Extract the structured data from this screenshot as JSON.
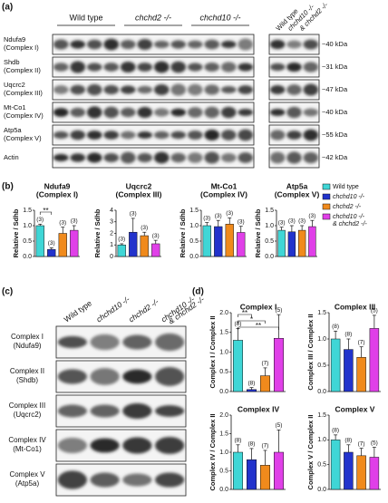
{
  "panels": {
    "a": "(a)",
    "b": "(b)",
    "c": "(c)",
    "d": "(d)"
  },
  "blot_a": {
    "groups": [
      "Wild type",
      "chchd2 -/-",
      "chchd10 -/-"
    ],
    "side_lanes": [
      "Wild type",
      "chchd10 -/-",
      "& chchd2 -/-"
    ],
    "rows": [
      {
        "name": "Ndufa9",
        "complex": "(Complex I)",
        "size": "~40 kDa"
      },
      {
        "name": "Shdb",
        "complex": "(Complex II)",
        "size": "~31 kDa"
      },
      {
        "name": "Uqcrc2",
        "complex": "(Complex III)",
        "size": "~47 kDa"
      },
      {
        "name": "Mt-Co1",
        "complex": "(Complex IV)",
        "size": "~40 kDa"
      },
      {
        "name": "Atp5a",
        "complex": "(Complex V)",
        "size": "~55 kDa"
      },
      {
        "name": "Actin",
        "complex": null,
        "size": "~42 kDa"
      }
    ]
  },
  "legend": [
    {
      "lines": [
        "Wild type"
      ],
      "color": "#3fd6d6"
    },
    {
      "lines": [
        "chchd10 -/-"
      ],
      "color": "#2233cc"
    },
    {
      "lines": [
        "chchd2 -/-"
      ],
      "color": "#f08a1c"
    },
    {
      "lines": [
        "chchd10 -/-",
        "& chchd2 -/-"
      ],
      "color": "#e040e8"
    }
  ],
  "blot_c": {
    "lanes": [
      [
        "Wild type"
      ],
      [
        "chchd10 -/-"
      ],
      [
        "chchd2 -/-"
      ],
      [
        "chchd10 -/-",
        "& chchd2 -/-"
      ]
    ],
    "rows": [
      [
        "Complex I",
        "(Ndufa9)"
      ],
      [
        "Complex II",
        "(Shdb)"
      ],
      [
        "Complex III",
        "(Uqcrc2)"
      ],
      [
        "Complex IV",
        "(Mt-Co1)"
      ],
      [
        "Complex V",
        "(Atp5a)"
      ]
    ]
  },
  "chart_data": [
    {
      "type": "bar",
      "title": "Ndufa9",
      "subtitle": "(Complex I)",
      "ylabel": "Relative / Sdhb",
      "ylim": [
        0,
        1.5
      ],
      "yticks": [
        {
          "value": 0,
          "label": "0.0"
        },
        0.5,
        {
          "value": 1,
          "label": "1.0"
        },
        1.5
      ],
      "values": [
        1.0,
        0.23,
        0.75,
        0.85
      ],
      "errors": [
        0.05,
        0.05,
        0.2,
        0.15
      ],
      "n_labels": [
        "(3)",
        "(3)",
        "(3)",
        "(3)"
      ],
      "annotations": [
        "**"
      ]
    },
    {
      "type": "bar",
      "title": "Uqcrc2",
      "subtitle": "(Complex III)",
      "ylabel": "Relative / Sdhb",
      "ylim": [
        0,
        4
      ],
      "yticks": [
        0,
        1,
        2,
        3,
        4
      ],
      "values": [
        1.0,
        2.1,
        1.8,
        1.1
      ],
      "errors": [
        0.1,
        1.2,
        0.3,
        0.3
      ],
      "n_labels": [
        "(3)",
        "(3)",
        "(3)",
        "(3)"
      ],
      "annotations": []
    },
    {
      "type": "bar",
      "title": "Mt-Co1",
      "subtitle": "(Complex IV)",
      "ylabel": "Relative / Sdhb",
      "ylim": [
        0,
        1.5
      ],
      "yticks": [
        {
          "value": 0,
          "label": "0.0"
        },
        0.5,
        {
          "value": 1,
          "label": "1.0"
        },
        1.5
      ],
      "values": [
        1.0,
        0.97,
        1.05,
        0.78
      ],
      "errors": [
        0.1,
        0.2,
        0.2,
        0.2
      ],
      "n_labels": [
        "(3)",
        "(3)",
        "(3)",
        "(3)"
      ],
      "annotations": []
    },
    {
      "type": "bar",
      "title": "Atp5a",
      "subtitle": "(Complex V)",
      "ylabel": "Relative / Sdhb",
      "ylim": [
        0,
        1.5
      ],
      "yticks": [
        {
          "value": 0,
          "label": "0.0"
        },
        0.5,
        {
          "value": 1,
          "label": "1.0"
        },
        1.5
      ],
      "values": [
        0.85,
        0.8,
        0.85,
        0.97
      ],
      "errors": [
        0.1,
        0.2,
        0.15,
        0.2
      ],
      "n_labels": [
        "(3)",
        "(3)",
        "(3)",
        "(3)"
      ],
      "annotations": []
    },
    {
      "type": "bar",
      "title": "Complex I",
      "ylabel": "Complex I / Complex II",
      "ylim": [
        0,
        2
      ],
      "yticks": [
        {
          "value": 0,
          "label": "0.0"
        },
        0.5,
        {
          "value": 1,
          "label": "1.0"
        },
        1.5,
        {
          "value": 2,
          "label": "2.0"
        }
      ],
      "values": [
        1.3,
        0.05,
        0.4,
        1.35
      ],
      "errors": [
        0.3,
        0.05,
        0.2,
        0.6
      ],
      "n_labels": [
        "(8)",
        "(8)",
        "(7)",
        "(5)"
      ],
      "annotations": [
        "**",
        "*",
        "**"
      ]
    },
    {
      "type": "bar",
      "title": "Complex III",
      "ylabel": "Complex III / Complex II",
      "ylim": [
        0,
        1.5
      ],
      "yticks": [
        {
          "value": 0,
          "label": "0.0"
        },
        0.5,
        {
          "value": 1,
          "label": "1.0"
        },
        1.5
      ],
      "values": [
        1.0,
        0.8,
        0.65,
        1.2
      ],
      "errors": [
        0.15,
        0.2,
        0.2,
        0.25
      ],
      "n_labels": [
        "(8)",
        "(8)",
        "(7)",
        "(5)"
      ],
      "annotations": []
    },
    {
      "type": "bar",
      "title": "Complex IV",
      "ylabel": "Complex IV / Complex II",
      "ylim": [
        0,
        2
      ],
      "yticks": [
        {
          "value": 0,
          "label": "0.0"
        },
        0.5,
        {
          "value": 1,
          "label": "1.0"
        },
        1.5,
        {
          "value": 2,
          "label": "2.0"
        }
      ],
      "values": [
        1.0,
        0.8,
        0.65,
        1.0
      ],
      "errors": [
        0.2,
        0.3,
        0.4,
        0.6
      ],
      "n_labels": [
        "(8)",
        "(8)",
        "(7)",
        "(5)"
      ],
      "annotations": []
    },
    {
      "type": "bar",
      "title": "Complex V",
      "ylabel": "Complex V / Complex II",
      "ylim": [
        0,
        1.5
      ],
      "yticks": [
        {
          "value": 0,
          "label": "0.0"
        },
        0.5,
        {
          "value": 1,
          "label": "1.0"
        },
        1.5
      ],
      "values": [
        1.0,
        0.75,
        0.68,
        0.65
      ],
      "errors": [
        0.1,
        0.15,
        0.15,
        0.2
      ],
      "n_labels": [
        "(8)",
        "(8)",
        "(7)",
        "(5)"
      ],
      "annotations": []
    }
  ]
}
